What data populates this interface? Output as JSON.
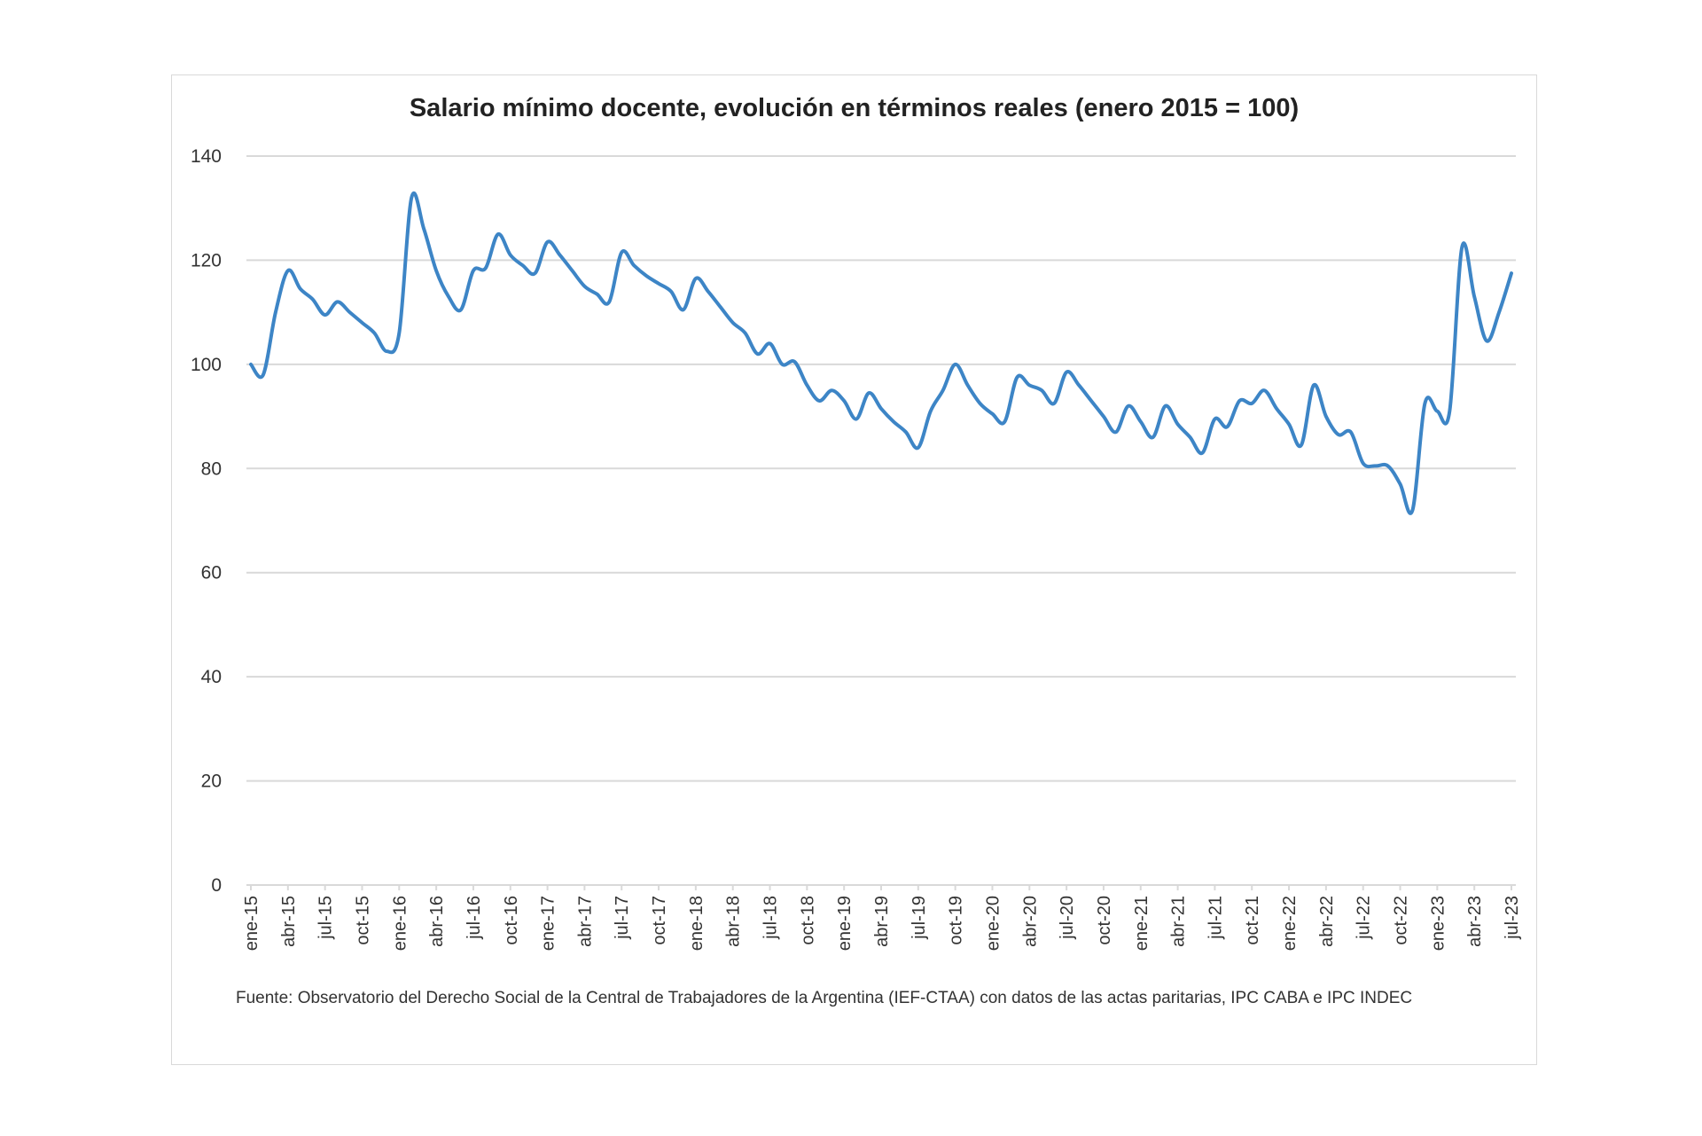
{
  "chart_data": {
    "type": "line",
    "title": "Salario mínimo docente, evolución en términos reales (enero 2015 = 100)",
    "xlabel": "",
    "ylabel": "",
    "ylim": [
      0,
      140
    ],
    "yticks": [
      0,
      20,
      40,
      60,
      80,
      100,
      120,
      140
    ],
    "grid": true,
    "line_color": "#3d85c6",
    "x_tick_labels": [
      "ene-15",
      "abr-15",
      "jul-15",
      "oct-15",
      "ene-16",
      "abr-16",
      "jul-16",
      "oct-16",
      "ene-17",
      "abr-17",
      "jul-17",
      "oct-17",
      "ene-18",
      "abr-18",
      "jul-18",
      "oct-18",
      "ene-19",
      "abr-19",
      "jul-19",
      "oct-19",
      "ene-20",
      "abr-20",
      "jul-20",
      "oct-20",
      "ene-21",
      "abr-21",
      "jul-21",
      "oct-21",
      "ene-22",
      "abr-22",
      "jul-22",
      "oct-22",
      "ene-23",
      "abr-23",
      "jul-23"
    ],
    "x_start": "ene-15",
    "x_end": "jul-23",
    "frequency": "monthly",
    "series": [
      {
        "name": "Salario mínimo docente real",
        "values": [
          100,
          98,
          110,
          118,
          114.5,
          112.5,
          109.5,
          112,
          110,
          108,
          106,
          102.5,
          106,
          132,
          126,
          118,
          113,
          110.5,
          118,
          118.5,
          125,
          121,
          119,
          117.5,
          123.5,
          121,
          118,
          115,
          113.5,
          112,
          121.5,
          119,
          117,
          115.5,
          114,
          110.5,
          116.5,
          114,
          111,
          108,
          106,
          102,
          104,
          100,
          100.5,
          96,
          93,
          95,
          93,
          89.5,
          94.5,
          91.5,
          89,
          87,
          84,
          91,
          95,
          100,
          96,
          92.5,
          90.5,
          89,
          97.5,
          96,
          95,
          92.5,
          98.5,
          96,
          93,
          90,
          87,
          92,
          89,
          86,
          92,
          88.5,
          86,
          83,
          89.5,
          88,
          93,
          92.5,
          95,
          91.5,
          88.5,
          84.5,
          96,
          90,
          86.5,
          87,
          81,
          80.5,
          80.5,
          77,
          72,
          92.5,
          91,
          91,
          122.5,
          113,
          104.5,
          110,
          117.5
        ]
      }
    ],
    "source": "Fuente: Observatorio del Derecho Social de la Central de Trabajadores de la Argentina (IEF-CTAA) con datos de las actas paritarias, IPC CABA e IPC INDEC"
  }
}
